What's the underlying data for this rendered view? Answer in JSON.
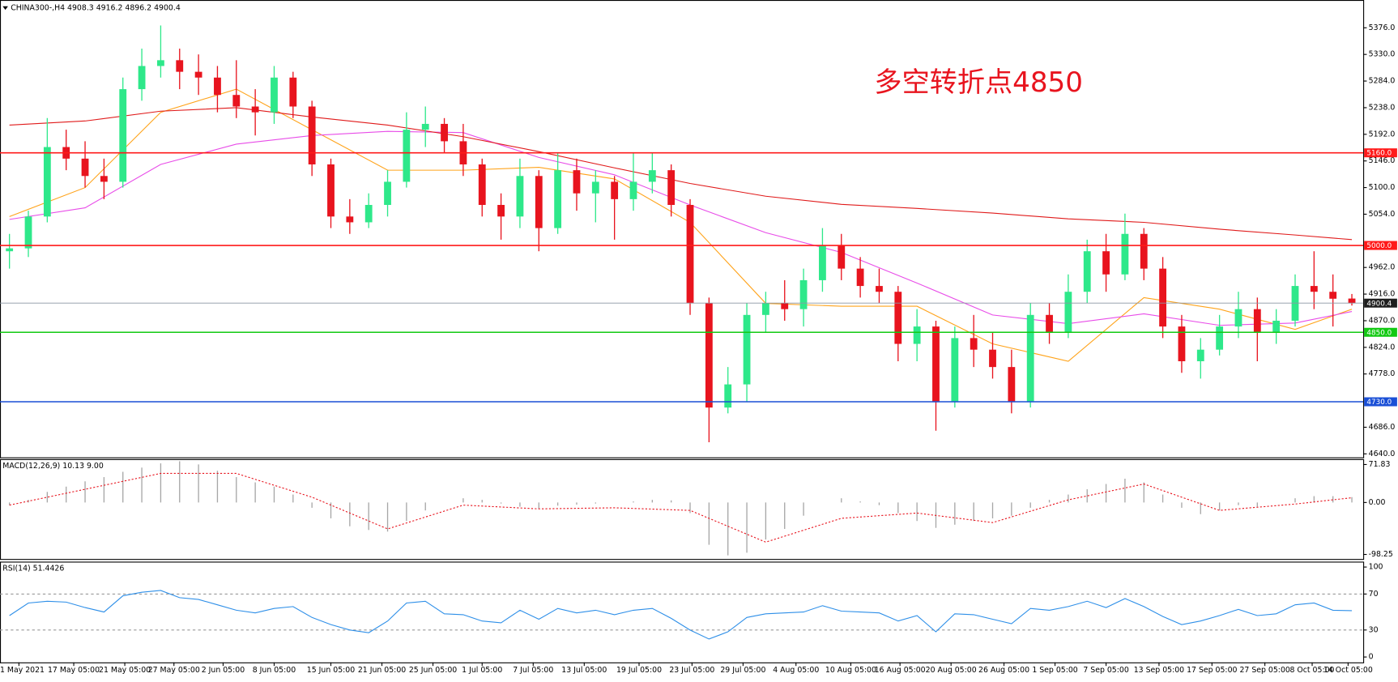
{
  "chart_data": [
    {
      "type": "candlestick",
      "title": "CHINA300-,H4  4908.3 4916.2 4896.2 4900.4",
      "annotation": "多空转折点4850",
      "up_color": "#2ee88a",
      "down_color": "#e8141e",
      "xlim": [
        -0.5,
        71.6
      ],
      "ylim": [
        4634,
        5424
      ],
      "xticks": [
        {
          "value": 0.5,
          "label": "1 May 2021"
        },
        {
          "value": 3.4,
          "label": "17 May 05:00"
        },
        {
          "value": 6.1,
          "label": "21 May 05:00"
        },
        {
          "value": 8.7,
          "label": "27 May 05:00"
        },
        {
          "value": 11.3,
          "label": "2 Jun 05:00"
        },
        {
          "value": 14.0,
          "label": "8 Jun 05:00"
        },
        {
          "value": 17.0,
          "label": "15 Jun 05:00"
        },
        {
          "value": 19.7,
          "label": "21 Jun 05:00"
        },
        {
          "value": 22.4,
          "label": "25 Jun 05:00"
        },
        {
          "value": 25.0,
          "label": "1 Jul 05:00"
        },
        {
          "value": 27.7,
          "label": "7 Jul 05:00"
        },
        {
          "value": 30.4,
          "label": "13 Jul 05:00"
        },
        {
          "value": 33.3,
          "label": "19 Jul 05:00"
        },
        {
          "value": 36.1,
          "label": "23 Jul 05:00"
        },
        {
          "value": 38.8,
          "label": "29 Jul 05:00"
        },
        {
          "value": 41.6,
          "label": "4 Aug 05:00"
        },
        {
          "value": 44.5,
          "label": "10 Aug 05:00"
        },
        {
          "value": 47.1,
          "label": "16 Aug 05:00"
        },
        {
          "value": 49.8,
          "label": "20 Aug 05:00"
        },
        {
          "value": 52.6,
          "label": "26 Aug 05:00"
        },
        {
          "value": 55.3,
          "label": "1 Sep 05:00"
        },
        {
          "value": 58.0,
          "label": "7 Sep 05:00"
        },
        {
          "value": 60.8,
          "label": "13 Sep 05:00"
        },
        {
          "value": 63.6,
          "label": "17 Sep 05:00"
        },
        {
          "value": 66.4,
          "label": "27 Sep 05:00"
        },
        {
          "value": 68.9,
          "label": "8 Oct 05:00"
        },
        {
          "value": 70.8,
          "label": "14 Oct 05:00"
        }
      ],
      "yticks": [
        {
          "value": 5376,
          "label": "5376.0"
        },
        {
          "value": 5330,
          "label": "5330.0"
        },
        {
          "value": 5284,
          "label": "5284.0"
        },
        {
          "value": 5238,
          "label": "5238.0"
        },
        {
          "value": 5192,
          "label": "5192.0"
        },
        {
          "value": 5146,
          "label": "5146.0"
        },
        {
          "value": 5100,
          "label": "5100.0"
        },
        {
          "value": 5054,
          "label": "5054.0"
        },
        {
          "value": 4962,
          "label": "4962.0"
        },
        {
          "value": 4916,
          "label": "4916.0"
        },
        {
          "value": 4870,
          "label": "4870.0"
        },
        {
          "value": 4824,
          "label": "4824.0"
        },
        {
          "value": 4778,
          "label": "4778.0"
        },
        {
          "value": 4686,
          "label": "4686.0"
        },
        {
          "value": 4640,
          "label": "4640.0"
        }
      ],
      "levels": [
        {
          "value": 5160,
          "label": "5160.0",
          "color": "#ff1a1a"
        },
        {
          "value": 5000,
          "label": "5000.0",
          "color": "#ff1a1a"
        },
        {
          "value": 4900.4,
          "label": "4900.4",
          "color": "#8a96a3"
        },
        {
          "value": 4850,
          "label": "4850.0",
          "color": "#12c912"
        },
        {
          "value": 4730,
          "label": "4730.0",
          "color": "#1a4fd6"
        }
      ],
      "open": [
        4990,
        4995,
        5050,
        5170,
        5150,
        5120,
        5110,
        5270,
        5310,
        5320,
        5300,
        5290,
        5260,
        5240,
        5230,
        5290,
        5240,
        5140,
        5050,
        5040,
        5070,
        5110,
        5200,
        5210,
        5180,
        5140,
        5070,
        5050,
        5120,
        5030,
        5130,
        5090,
        5110,
        5080,
        5110,
        5130,
        5070,
        4900,
        4720,
        4760,
        4880,
        4900,
        4890,
        4940,
        5000,
        4960,
        4930,
        4920,
        4830,
        4860,
        4730,
        4840,
        4820,
        4790,
        4730,
        4880,
        4850,
        4920,
        4990,
        4950,
        5020,
        4960,
        4860,
        4800,
        4820,
        4860,
        4890,
        4850,
        4870,
        4930,
        4920,
        4908.3
      ],
      "high": [
        5020,
        5060,
        5220,
        5200,
        5180,
        5150,
        5290,
        5340,
        5380,
        5340,
        5330,
        5310,
        5320,
        5270,
        5310,
        5300,
        5250,
        5150,
        5080,
        5090,
        5130,
        5230,
        5240,
        5220,
        5210,
        5150,
        5090,
        5150,
        5130,
        5160,
        5150,
        5130,
        5120,
        5160,
        5160,
        5140,
        5080,
        4910,
        4790,
        4900,
        4920,
        4940,
        4960,
        5030,
        5020,
        4980,
        4960,
        4930,
        4890,
        4870,
        4860,
        4880,
        4850,
        4820,
        4900,
        4900,
        4950,
        5010,
        5020,
        5055,
        5030,
        4980,
        4880,
        4840,
        4880,
        4920,
        4910,
        4890,
        4950,
        4990,
        4950,
        4916.2
      ],
      "low": [
        4960,
        4980,
        5040,
        5130,
        5100,
        5080,
        5100,
        5250,
        5290,
        5270,
        5260,
        5230,
        5220,
        5190,
        5210,
        5220,
        5120,
        5030,
        5020,
        5030,
        5050,
        5100,
        5170,
        5160,
        5120,
        5050,
        5010,
        5030,
        4990,
        5020,
        5060,
        5040,
        5010,
        5060,
        5090,
        5050,
        4880,
        4660,
        4710,
        4730,
        4850,
        4870,
        4860,
        4920,
        4940,
        4910,
        4900,
        4800,
        4800,
        4680,
        4720,
        4790,
        4770,
        4710,
        4720,
        4830,
        4840,
        4900,
        4920,
        4940,
        4940,
        4840,
        4780,
        4770,
        4810,
        4840,
        4800,
        4830,
        4860,
        4890,
        4860,
        4896.2
      ],
      "close": [
        4995,
        5050,
        5170,
        5150,
        5120,
        5110,
        5270,
        5310,
        5320,
        5300,
        5290,
        5260,
        5240,
        5230,
        5290,
        5240,
        5140,
        5050,
        5040,
        5070,
        5110,
        5200,
        5210,
        5180,
        5140,
        5070,
        5050,
        5120,
        5030,
        5130,
        5090,
        5110,
        5080,
        5110,
        5130,
        5070,
        4900,
        4720,
        4760,
        4880,
        4900,
        4890,
        4940,
        5000,
        4960,
        4930,
        4920,
        4830,
        4860,
        4730,
        4840,
        4820,
        4790,
        4730,
        4880,
        4850,
        4920,
        4990,
        4950,
        5020,
        4960,
        4860,
        4800,
        4820,
        4860,
        4890,
        4850,
        4870,
        4930,
        4920,
        4908,
        4900.4
      ],
      "series": [
        {
          "color": "#ffa31a",
          "x": [
            0,
            4,
            8,
            12,
            16,
            20,
            24,
            28,
            32,
            36,
            40,
            44,
            48,
            52,
            56,
            60,
            64,
            68,
            71
          ],
          "values": [
            5050,
            5100,
            5230,
            5270,
            5200,
            5130,
            5130,
            5135,
            5115,
            5040,
            4900,
            4895,
            4895,
            4830,
            4800,
            4910,
            4890,
            4855,
            4890
          ]
        },
        {
          "color": "#e84ce8",
          "x": [
            0,
            4,
            8,
            12,
            16,
            20,
            24,
            28,
            32,
            36,
            40,
            44,
            48,
            52,
            56,
            60,
            64,
            68,
            71
          ],
          "values": [
            5045,
            5065,
            5140,
            5175,
            5190,
            5197,
            5195,
            5152,
            5122,
            5070,
            5022,
            4988,
            4935,
            4880,
            4865,
            4882,
            4862,
            4866,
            4886
          ]
        },
        {
          "color": "#e01a1a",
          "x": [
            0,
            4,
            8,
            12,
            16,
            20,
            24,
            28,
            32,
            36,
            40,
            44,
            48,
            52,
            56,
            60,
            64,
            68,
            71
          ],
          "values": [
            5208,
            5215,
            5232,
            5238,
            5222,
            5208,
            5188,
            5162,
            5134,
            5107,
            5085,
            5071,
            5064,
            5056,
            5046,
            5040,
            5028,
            5018,
            5010
          ]
        }
      ]
    },
    {
      "type": "macd",
      "title": "MACD(12,26,9) 10.13 9.00",
      "xlim": [
        -0.5,
        71.6
      ],
      "ylim": [
        -108.5,
        82
      ],
      "yticks": [
        71.83,
        {
          "value": 0,
          "label": "0.00"
        },
        -98.25
      ],
      "color": "#a6a6a6",
      "values": [
        -5,
        5,
        20,
        30,
        40,
        48,
        58,
        66,
        74,
        78,
        72,
        60,
        48,
        38,
        30,
        15,
        -10,
        -30,
        -45,
        -52,
        -55,
        -35,
        -15,
        0,
        8,
        5,
        -2,
        -8,
        -12,
        -6,
        -4,
        -2,
        0,
        2,
        5,
        4,
        -20,
        -80,
        -100,
        -95,
        -70,
        -50,
        -25,
        0,
        8,
        2,
        -5,
        -20,
        -35,
        -48,
        -42,
        -35,
        -30,
        -25,
        -10,
        5,
        15,
        25,
        35,
        45,
        38,
        15,
        -10,
        -22,
        -15,
        -5,
        -8,
        0,
        8,
        12,
        12,
        10.13
      ],
      "signal": {
        "color": "#e8141e",
        "x": [
          0,
          4,
          8,
          12,
          16,
          20,
          24,
          28,
          32,
          36,
          40,
          44,
          48,
          52,
          56,
          60,
          64,
          68,
          71
        ],
        "values": [
          -5,
          25,
          55,
          55,
          10,
          -50,
          -5,
          -12,
          -10,
          -15,
          -75,
          -30,
          -20,
          -38,
          5,
          35,
          -15,
          -3,
          9
        ]
      }
    },
    {
      "type": "line",
      "title": "RSI(14) 51.4426",
      "xlim": [
        -0.5,
        71.6
      ],
      "ylim": [
        -6,
        106
      ],
      "yticks": [
        100,
        70,
        30,
        0
      ],
      "levels": [
        70,
        30
      ],
      "color": "#2e8fe8",
      "values": [
        46,
        60,
        62,
        61,
        55,
        50,
        68,
        72,
        74,
        66,
        64,
        58,
        52,
        49,
        54,
        56,
        44,
        36,
        30,
        27,
        40,
        60,
        62,
        48,
        47,
        40,
        38,
        52,
        42,
        54,
        49,
        52,
        47,
        52,
        54,
        43,
        30,
        20,
        28,
        44,
        48,
        49,
        50,
        57,
        51,
        50,
        49,
        40,
        46,
        28,
        48,
        47,
        42,
        37,
        54,
        52,
        56,
        62,
        55,
        65,
        56,
        45,
        36,
        40,
        46,
        53,
        46,
        48,
        58,
        60,
        52,
        51.4426
      ]
    }
  ]
}
